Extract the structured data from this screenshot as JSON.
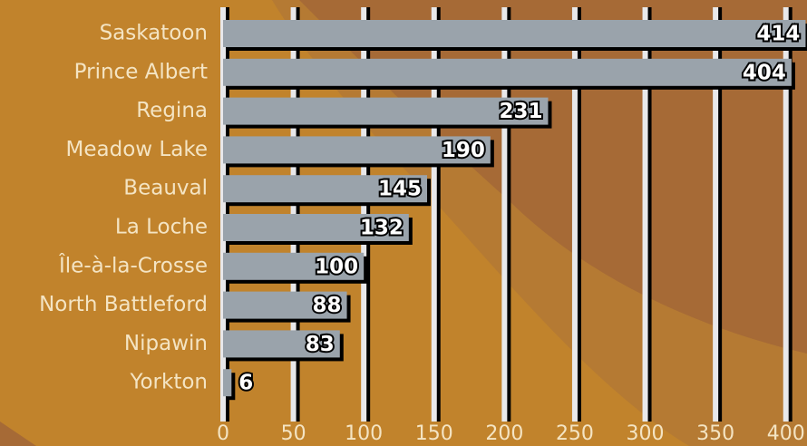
{
  "chart_data": {
    "type": "bar",
    "orientation": "horizontal",
    "categories": [
      "Saskatoon",
      "Prince Albert",
      "Regina",
      "Meadow Lake",
      "Beauval",
      "La Loche",
      "Île-à-la-Crosse",
      "North Battleford",
      "Nipawin",
      "Yorkton"
    ],
    "values": [
      414,
      404,
      231,
      190,
      145,
      132,
      100,
      88,
      83,
      6
    ],
    "color": "#9aa3ab",
    "xlim": [
      0,
      415
    ],
    "xticks": [
      0,
      50,
      100,
      150,
      200,
      250,
      300,
      350,
      400
    ],
    "grid": true
  }
}
